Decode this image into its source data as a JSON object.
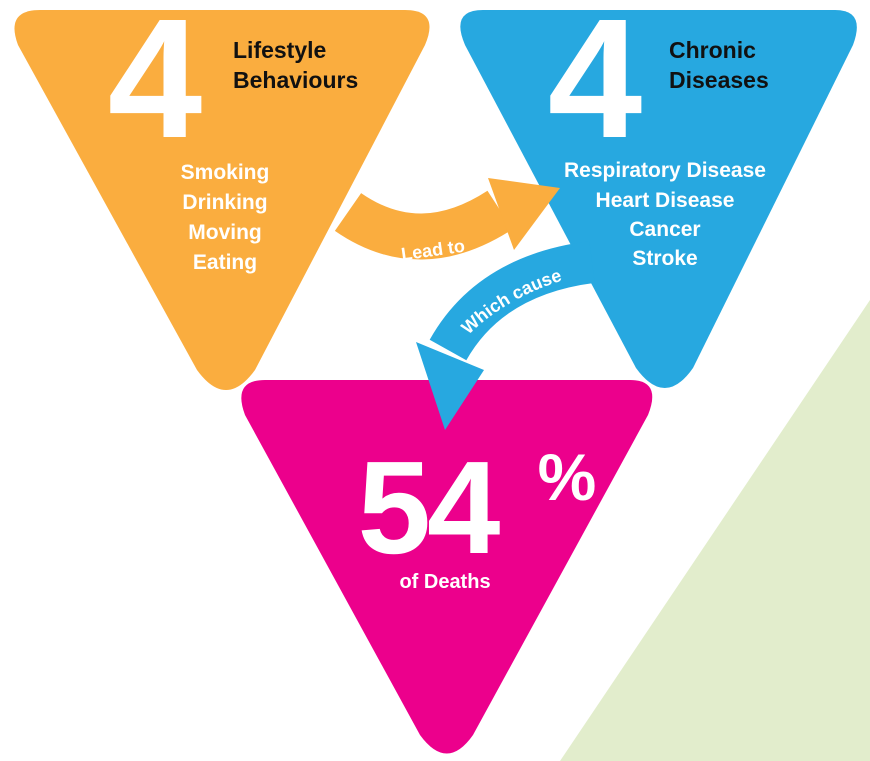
{
  "colors": {
    "orange": "#FAAD3F",
    "blue": "#27A8E0",
    "pink": "#EC008C",
    "green_bg": "#E2EDCC",
    "text_dark": "#111111",
    "text_white": "#FFFFFF"
  },
  "lifestyle": {
    "count": "4",
    "title_line1": "Lifestyle",
    "title_line2": "Behaviours",
    "items": [
      "Smoking",
      "Drinking",
      "Moving",
      "Eating"
    ]
  },
  "diseases": {
    "count": "4",
    "title_line1": "Chronic",
    "title_line2": "Diseases",
    "items": [
      "Respiratory Disease",
      "Heart Disease",
      "Cancer",
      "Stroke"
    ]
  },
  "deaths": {
    "number": "54",
    "percent_sign": "%",
    "caption": "of Deaths"
  },
  "arrows": {
    "lead_to": "Lead to",
    "which_cause": "Which cause"
  }
}
